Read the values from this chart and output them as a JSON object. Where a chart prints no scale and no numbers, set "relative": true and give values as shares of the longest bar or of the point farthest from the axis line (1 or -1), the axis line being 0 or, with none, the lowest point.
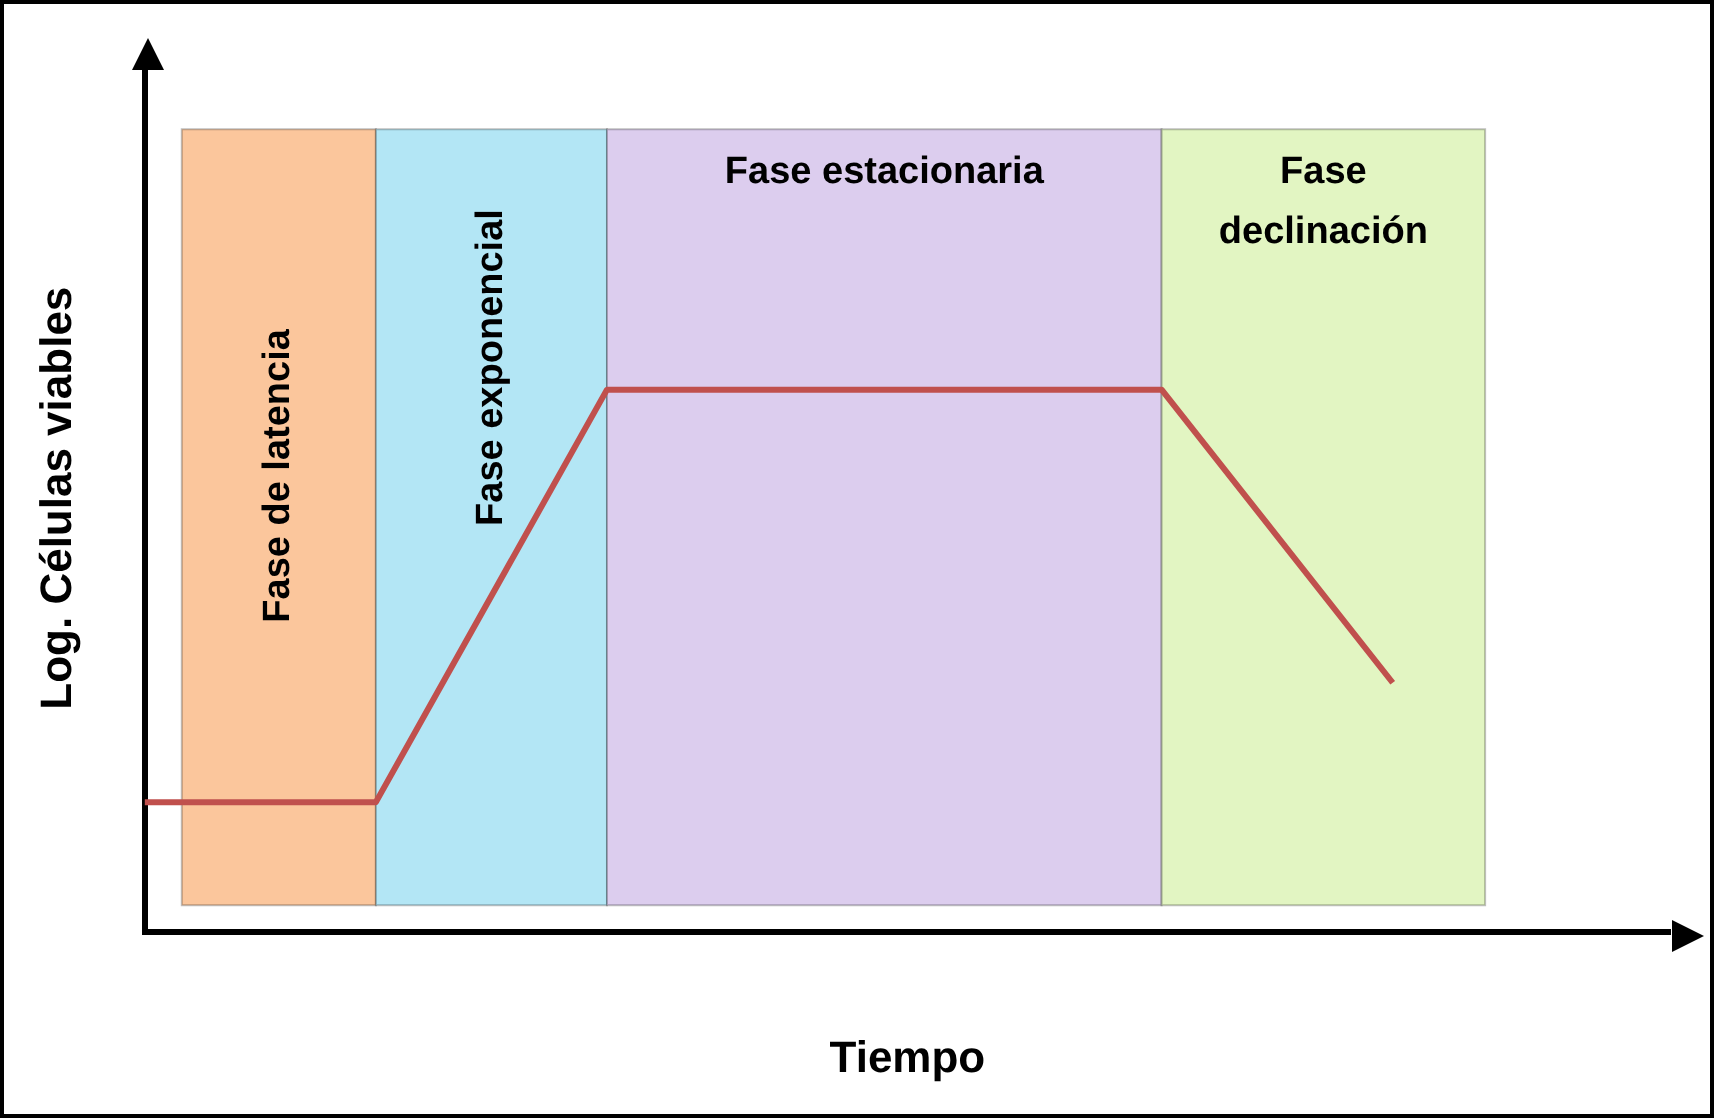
{
  "chart_data": {
    "type": "line",
    "relative": true,
    "xlabel": "Tiempo",
    "ylabel": "Log. Células viables",
    "grid": false,
    "legend": false,
    "marker": "none",
    "line_style": "solid",
    "categories": [
      null,
      null,
      null,
      null,
      null,
      null,
      null,
      null,
      null,
      null,
      null,
      null,
      null,
      null,
      null,
      null,
      null,
      null,
      null,
      null,
      null,
      null,
      null,
      null,
      null,
      null,
      null,
      null,
      null,
      null,
      null,
      null,
      null,
      null
    ],
    "series": [
      {
        "color": "#c0504d",
        "values": [
          0.24,
          null,
          null,
          null,
          null,
          0.24,
          null,
          null,
          null,
          null,
          1,
          null,
          null,
          null,
          null,
          null,
          null,
          null,
          null,
          null,
          null,
          null,
          1,
          null,
          null,
          null,
          null,
          0.46,
          null,
          null,
          null,
          null,
          null,
          null
        ]
      }
    ],
    "annotations": [
      "Fase de latencia",
      "Fase exponencial",
      "Fase estacionaria",
      "Fase declinación"
    ]
  }
}
